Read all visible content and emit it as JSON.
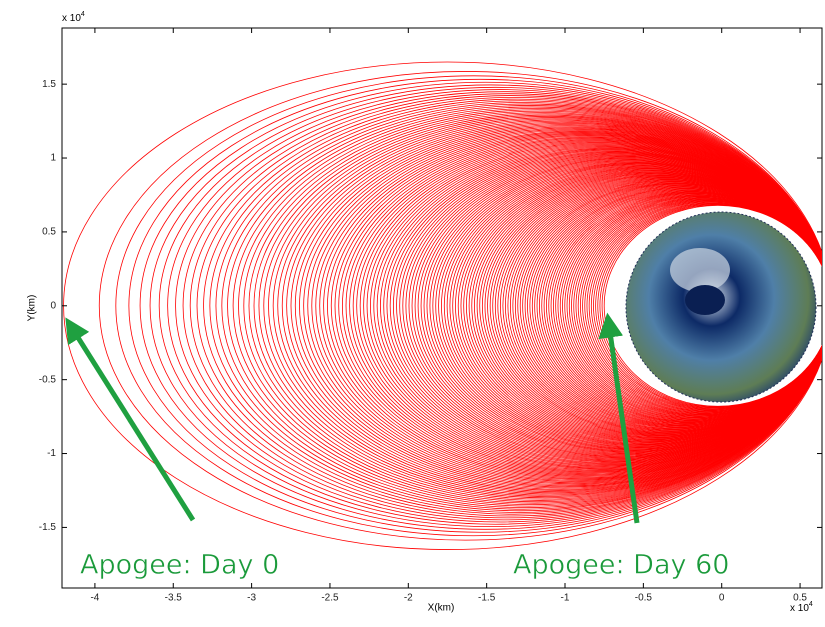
{
  "chart_data": {
    "type": "orbit",
    "xlabel": "X(km)",
    "ylabel": "Y(km)",
    "x_scale": {
      "base": "x 10",
      "exp": "4"
    },
    "y_scale": {
      "base": "x 10",
      "exp": "4"
    },
    "xlim": [
      -4.21,
      0.64
    ],
    "ylim": [
      -1.91,
      1.88
    ],
    "xticks": [
      -4,
      -3.5,
      -3,
      -2.5,
      -2,
      -1.5,
      -1,
      -0.5,
      0,
      0.5
    ],
    "yticks": [
      -1.5,
      -1,
      -0.5,
      0,
      0.5,
      1,
      1.5
    ],
    "days": [
      0,
      60
    ],
    "apogee_x": [
      -4.2,
      -0.75
    ],
    "semi_minor": [
      1.65,
      0.68
    ],
    "perigee_x": 0.7,
    "color": "#ff0000",
    "annotations": [
      "Apogee: Day 0",
      "Apogee: Day 60"
    ]
  }
}
